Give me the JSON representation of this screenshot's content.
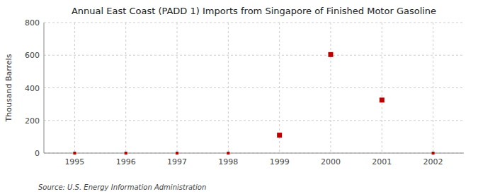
{
  "chart_data": {
    "type": "scatter",
    "title": "Annual East Coast (PADD 1) Imports from Singapore of Finished Motor Gasoline",
    "ylabel": "Thousand Barrels",
    "source": "Source: U.S. Energy Information Administration",
    "x": [
      1995,
      1996,
      1997,
      1998,
      1999,
      2000,
      2001,
      2002
    ],
    "values": [
      0,
      0,
      0,
      0,
      110,
      604,
      325,
      0
    ],
    "xlim": [
      1994.4,
      2002.6
    ],
    "xticks": [
      1995,
      1996,
      1997,
      1998,
      1999,
      2000,
      2001,
      2002
    ],
    "ylim": [
      0,
      800
    ],
    "yticks": [
      0,
      200,
      400,
      600,
      800
    ],
    "color": "#bb0000",
    "marker": "square",
    "grid": true
  }
}
